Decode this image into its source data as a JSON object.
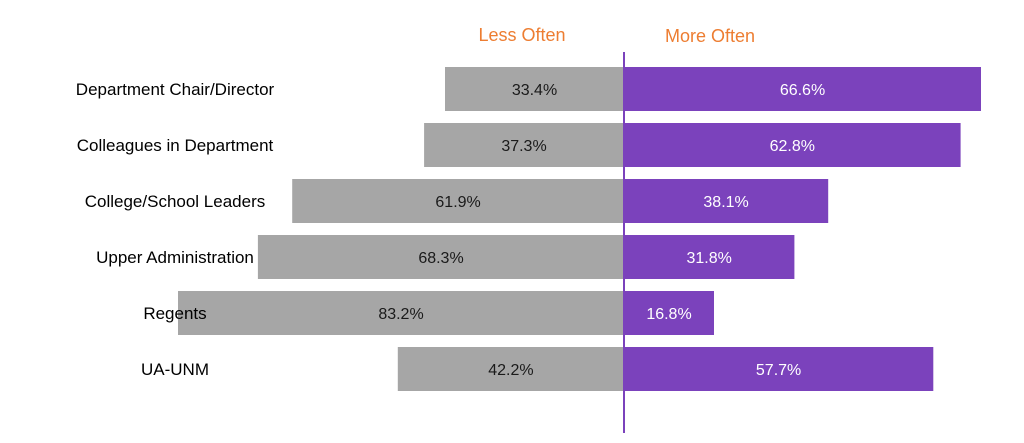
{
  "chart_data": {
    "type": "bar",
    "orientation": "horizontal-diverging",
    "series": [
      {
        "name": "Less Often",
        "color": "#a6a6a6",
        "label_color": "#1a1a1a",
        "values": [
          33.4,
          37.3,
          61.9,
          68.3,
          83.2,
          42.2
        ],
        "value_labels": [
          "33.4%",
          "37.3%",
          "61.9%",
          "68.3%",
          "83.2%",
          "42.2%"
        ]
      },
      {
        "name": "More Often",
        "color": "#7b42bc",
        "label_color": "#ffffff",
        "values": [
          66.6,
          62.8,
          38.1,
          31.8,
          16.8,
          57.7
        ],
        "value_labels": [
          "66.6%",
          "62.8%",
          "38.1%",
          "31.8%",
          "16.8%",
          "57.7%"
        ]
      }
    ],
    "categories": [
      "Department Chair/Director",
      "Colleagues in Department",
      "College/School Leaders",
      "Upper Administration",
      "Regents",
      "UA-UNM"
    ],
    "header_color": "#ed7d31",
    "divider_color": "#7b42bc",
    "title": "",
    "xlabel": "",
    "ylabel": "",
    "grid": false,
    "legend": "top, as column headers above each side of the center divider"
  }
}
